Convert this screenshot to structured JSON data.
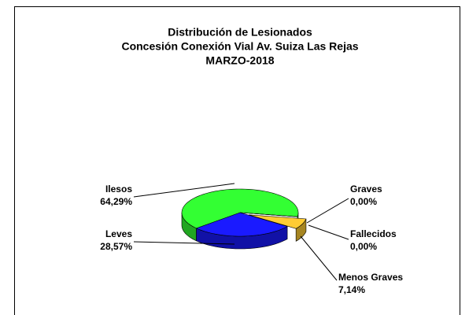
{
  "chart_data": {
    "type": "pie3d",
    "title": [
      "Distribución de Lesionados",
      "Concesión Conexión Vial Av. Suiza Las Rejas",
      "MARZO-2018"
    ],
    "categories": [
      "Ilesos",
      "Leves",
      "Menos Graves",
      "Graves",
      "Fallecidos"
    ],
    "values": [
      64.29,
      28.57,
      7.14,
      0,
      0
    ],
    "value_labels": [
      "64,29%",
      "28,57%",
      "7,14%",
      "0,00%",
      "0,00%"
    ],
    "colors": [
      "#33ff33",
      "#1a1aff",
      "#ffcc33",
      "#ff66cc",
      "#999999"
    ],
    "exploded": [
      false,
      false,
      true,
      false,
      false
    ]
  }
}
